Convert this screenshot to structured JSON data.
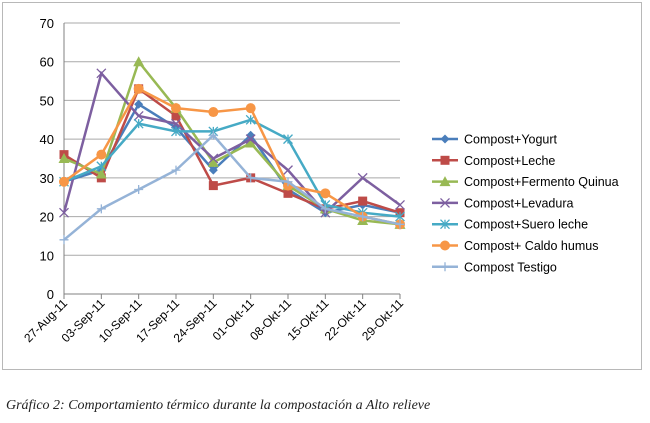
{
  "chart_data": {
    "type": "line",
    "title": "",
    "xlabel": "",
    "ylabel": "",
    "ylim": [
      0,
      70
    ],
    "yticks": [
      0,
      10,
      20,
      30,
      40,
      50,
      60,
      70
    ],
    "categories": [
      "27-Aug-11",
      "03-Sep-11",
      "10-Sep-11",
      "17-Sep-11",
      "24-Sep-11",
      "01-Okt-11",
      "08-Okt-11",
      "15-Okt-11",
      "22-Okt-11",
      "29-Okt-11"
    ],
    "legend_position": "right",
    "grid": true,
    "series": [
      {
        "name": "Compost+Yogurt",
        "color": "#4a7ebb",
        "marker": "diamond",
        "values": [
          29,
          32,
          49,
          43,
          32,
          41,
          27,
          21,
          23,
          21
        ]
      },
      {
        "name": "Compost+Leche",
        "color": "#be4b48",
        "marker": "square",
        "values": [
          36,
          30,
          53,
          46,
          28,
          30,
          26,
          22,
          24,
          21
        ]
      },
      {
        "name": "Compost+Fermento Quinua",
        "color": "#98b954",
        "marker": "triangle",
        "values": [
          35,
          31,
          60,
          48,
          34,
          39,
          28,
          22,
          19,
          18
        ]
      },
      {
        "name": "Compost+Levadura",
        "color": "#7d5fa0",
        "marker": "x",
        "values": [
          21,
          57,
          46,
          44,
          35,
          40,
          32,
          21,
          30,
          23
        ]
      },
      {
        "name": "Compost+Suero leche",
        "color": "#46aac5",
        "marker": "star",
        "values": [
          29,
          33,
          44,
          42,
          42,
          45,
          40,
          23,
          21,
          20
        ]
      },
      {
        "name": "Compost+ Caldo humus",
        "color": "#f79646",
        "marker": "circle",
        "values": [
          29,
          36,
          53,
          48,
          47,
          48,
          28,
          26,
          20,
          18
        ]
      },
      {
        "name": "Compost Testigo",
        "color": "#95b3d7",
        "marker": "plus",
        "values": [
          14,
          22,
          27,
          32,
          41,
          30,
          29,
          22,
          20,
          18
        ]
      }
    ]
  },
  "caption": "Gráfico 2: Comportamiento térmico durante la compostación a Alto relieve"
}
